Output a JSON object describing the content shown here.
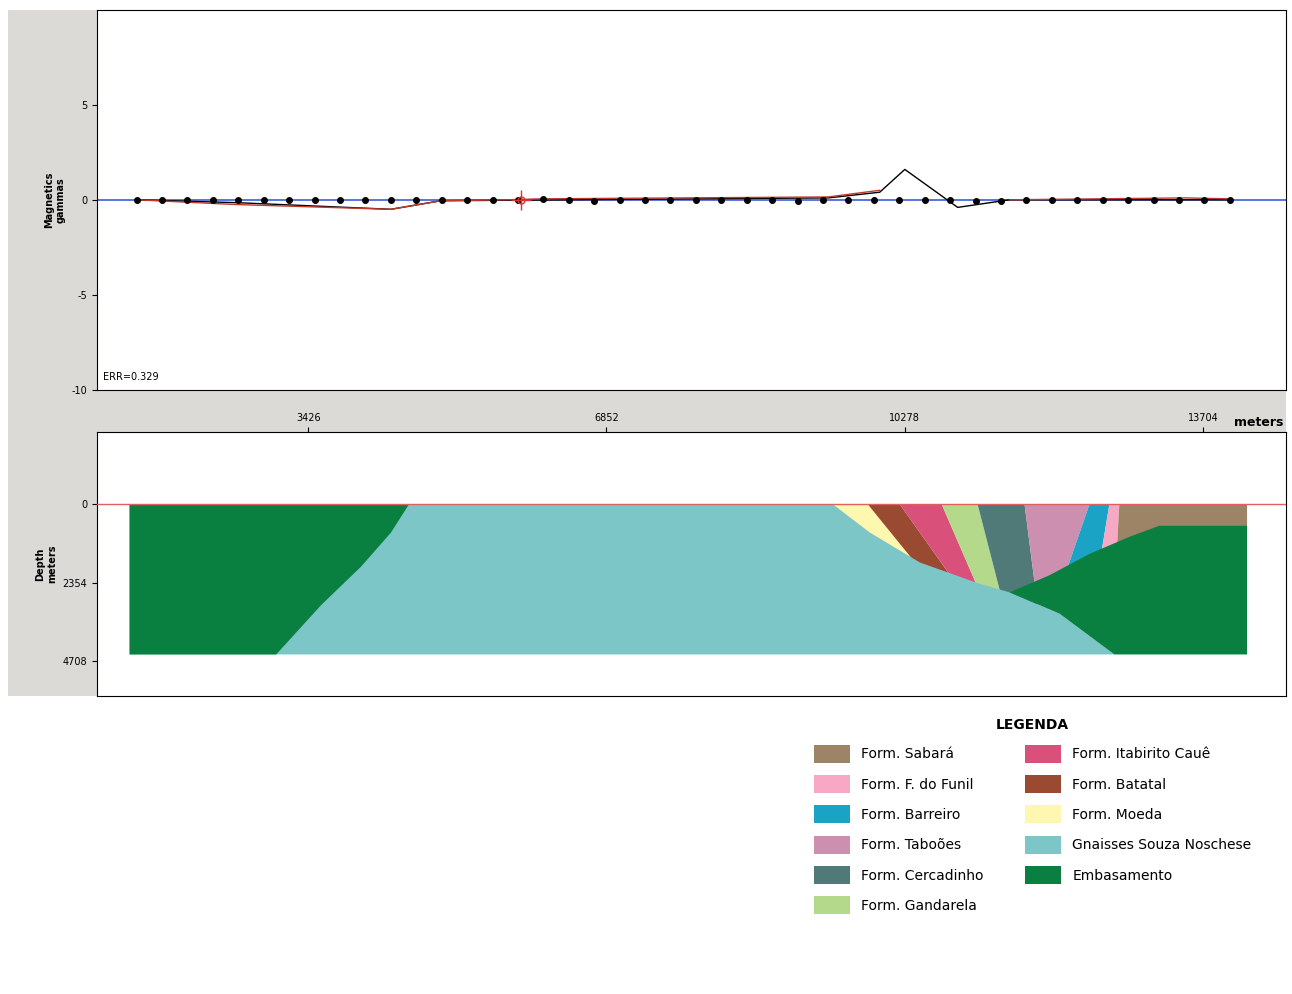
{
  "chart_data": [
    {
      "type": "line",
      "ylabel": "Magnetics\ngammas",
      "annotation": "ERR=0.329",
      "xlim": [
        1000,
        14650
      ],
      "ylim": [
        -10,
        10
      ],
      "yticks": [
        5,
        0,
        -5,
        -10
      ],
      "tick_labels": "y",
      "baseline": 0,
      "series": [
        {
          "type": "scatter",
          "color": "#000000",
          "marker": "o",
          "x": [
            1455,
            1747,
            2039,
            2331,
            2623,
            2915,
            3207,
            3499,
            3791,
            4083,
            4375,
            4667,
            4959,
            5251,
            5543,
            5835,
            6127,
            6419,
            6711,
            7003,
            7295,
            7587,
            7879,
            8171,
            8463,
            8755,
            9047,
            9339,
            9631,
            9923,
            10215,
            10507,
            10799,
            11091,
            11383,
            11675,
            11967,
            12259,
            12551,
            12843,
            13135,
            13427,
            13719,
            14011
          ],
          "values": [
            0,
            0,
            0,
            0,
            0,
            0,
            0,
            0,
            0,
            0,
            0,
            0,
            0,
            0,
            0,
            0,
            0.05,
            0,
            -0.05,
            0,
            0,
            0,
            0,
            0,
            0,
            0,
            -0.05,
            0,
            0,
            0,
            0,
            0,
            0,
            -0.05,
            -0.05,
            0,
            0,
            0,
            0,
            0,
            0,
            0,
            0,
            0
          ]
        },
        {
          "type": "line",
          "color": "#000000",
          "line_style": "solid",
          "x": [
            1455,
            2600,
            4377,
            4950,
            9400,
            9990,
            10278,
            10885,
            11481,
            14011
          ],
          "values": [
            0,
            -0.15,
            -0.5,
            -0.05,
            0.1,
            0.4,
            1.6,
            -0.4,
            0,
            0
          ]
        },
        {
          "type": "line",
          "color": "#c0392b",
          "line_style": "solid",
          "x": [
            1455,
            2600,
            4377,
            4950,
            5700,
            6100,
            9400,
            9990,
            10100,
            11481,
            12500,
            13500,
            14011
          ],
          "values": [
            0,
            -0.25,
            -0.5,
            -0.05,
            0,
            0.05,
            0.15,
            0.5,
            null,
            0,
            0.05,
            0.1,
            0.05
          ]
        }
      ],
      "cursor": {
        "x": 5866,
        "value": 0,
        "color": "#e03030",
        "marker": "+"
      }
    },
    {
      "type": "cross_section",
      "xlabel": "meters",
      "ylabel": "Depth\nmeters",
      "xlim": [
        1000,
        14650
      ],
      "xticks": [
        3426,
        6852,
        10278,
        13704
      ],
      "ylim": [
        5740,
        -2160
      ],
      "yticks": [
        0,
        2354,
        4708
      ],
      "surface": 0,
      "units": [
        {
          "name": "Form. Moeda",
          "color": "#fdf7b0",
          "polygons": [
            [
              [
                9453,
                0
              ],
              [
                9854,
                0
              ],
              [
                10600,
                2400
              ],
              [
                9800,
                2400
              ]
            ]
          ]
        },
        {
          "name": "Form. Batatal",
          "color": "#9a4a30",
          "polygons": [
            [
              [
                9854,
                0
              ],
              [
                10221,
                0
              ],
              [
                10900,
                2500
              ],
              [
                10600,
                2400
              ]
            ]
          ]
        },
        {
          "name": "Form. Itabirito Cauê",
          "color": "#d9507a",
          "polygons": [
            [
              [
                10221,
                0
              ],
              [
                10702,
                0
              ],
              [
                11150,
                2700
              ],
              [
                10900,
                2500
              ]
            ]
          ]
        },
        {
          "name": "Form. Gandarela",
          "color": "#b5d98a",
          "polygons": [
            [
              [
                10702,
                0
              ],
              [
                11114,
                0
              ],
              [
                11400,
                2900
              ],
              [
                11150,
                2700
              ]
            ]
          ]
        },
        {
          "name": "Form. Cercadinho",
          "color": "#4f7a78",
          "polygons": [
            [
              [
                11114,
                0
              ],
              [
                11653,
                0
              ],
              [
                11800,
                3000
              ],
              [
                11400,
                2900
              ]
            ]
          ]
        },
        {
          "name": "Form. Taboões",
          "color": "#cc8fb0",
          "polygons": [
            [
              [
                11653,
                0
              ],
              [
                12398,
                0
              ],
              [
                12000,
                3000
              ],
              [
                11800,
                3000
              ]
            ]
          ]
        },
        {
          "name": "Form. Barreiro",
          "color": "#1aa3c4",
          "polygons": [
            [
              [
                12398,
                0
              ],
              [
                12627,
                0
              ],
              [
                12500,
                2000
              ],
              [
                12000,
                3000
              ]
            ]
          ]
        },
        {
          "name": "Form. F. do Funil",
          "color": "#f7a8c4",
          "polygons": [
            [
              [
                12627,
                0
              ],
              [
                12741,
                0
              ],
              [
                12700,
                2000
              ],
              [
                12500,
                2000
              ]
            ]
          ]
        },
        {
          "name": "Form. Sabará",
          "color": "#9e8466",
          "polygons": [
            [
              [
                12741,
                0
              ],
              [
                14208,
                0
              ],
              [
                14208,
                700
              ],
              [
                12700,
                2000
              ]
            ]
          ]
        },
        {
          "name": "Gnaisses Souza Noschese",
          "color": "#7cc6c8",
          "polygons": [
            [
              [
                1375,
                0
              ],
              [
                9453,
                0
              ],
              [
                9877,
                845
              ],
              [
                10450,
                1741
              ],
              [
                11138,
                2381
              ],
              [
                11481,
                2637
              ],
              [
                12054,
                3277
              ],
              [
                12684,
                4500
              ],
              [
                1375,
                4500
              ]
            ]
          ]
        },
        {
          "name": "Embasamento",
          "color": "#0a8040",
          "polygons": [
            [
              [
                1375,
                0
              ],
              [
                4583,
                0
              ],
              [
                4377,
                845
              ],
              [
                4033,
                1868
              ],
              [
                3575,
                3020
              ],
              [
                3059,
                4500
              ],
              [
                1375,
                4500
              ]
            ],
            [
              [
                11481,
                2637
              ],
              [
                11939,
                2125
              ],
              [
                12398,
                1485
              ],
              [
                12856,
                973
              ],
              [
                13200,
                640
              ],
              [
                14208,
                640
              ],
              [
                14208,
                4500
              ],
              [
                12684,
                4500
              ],
              [
                12054,
                3277
              ]
            ]
          ]
        }
      ],
      "legend_title": "LEGENDA",
      "legend_entries": [
        "Form. Sabará",
        "Form. F. do Funil",
        "Form. Barreiro",
        "Form. Taboões",
        "Form. Cercadinho",
        "Form. Gandarela",
        "Form. Itabirito Cauê",
        "Form. Batatal",
        "Form. Moeda",
        "Gnaisses Souza Noschese",
        "Embasamento"
      ]
    }
  ]
}
